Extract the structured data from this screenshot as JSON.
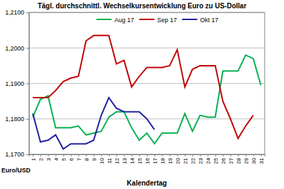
{
  "chart_data": {
    "type": "line",
    "title": "Tägl. durchschnittl. Wechselkursentwicklung Euro zu US-Dollar",
    "x_label": "Kalendertag",
    "y_label": "Euro/USD",
    "categories": [
      "1",
      "2",
      "3",
      "4",
      "5",
      "6",
      "7",
      "8",
      "9",
      "10",
      "11",
      "12",
      "13",
      "14",
      "15",
      "16",
      "17",
      "18",
      "19",
      "20",
      "21",
      "22",
      "23",
      "24",
      "25",
      "26",
      "27",
      "28",
      "29",
      "30",
      "31"
    ],
    "series": [
      {
        "name": "Aug 17",
        "color": "#00b050",
        "values": [
          1.1805,
          1.1855,
          1.1865,
          1.1775,
          1.1775,
          1.1775,
          1.178,
          1.1755,
          1.176,
          1.1765,
          1.1805,
          1.182,
          1.182,
          1.1775,
          1.174,
          1.176,
          1.173,
          1.176,
          1.176,
          1.176,
          1.1815,
          1.1765,
          1.181,
          1.1805,
          1.1805,
          1.1935,
          1.1935,
          1.1935,
          1.198,
          1.197,
          1.1895
        ]
      },
      {
        "name": "Sep 17",
        "color": "#c00000",
        "values": [
          1.186,
          1.186,
          1.186,
          1.188,
          1.1905,
          1.1915,
          1.192,
          1.202,
          1.2035,
          1.2035,
          1.2035,
          1.1955,
          1.1965,
          1.189,
          1.192,
          1.1945,
          1.1945,
          1.1945,
          1.195,
          1.1995,
          1.189,
          1.194,
          1.195,
          1.195,
          1.195,
          1.185,
          1.18,
          1.1745,
          1.178,
          1.181,
          null
        ]
      },
      {
        "name": "Okt 17",
        "color": "#1f1fa0",
        "values": [
          1.1815,
          1.1735,
          1.174,
          1.1755,
          1.1715,
          1.173,
          1.173,
          1.173,
          1.174,
          1.181,
          1.186,
          1.183,
          1.182,
          1.182,
          1.182,
          1.18,
          1.177,
          null,
          null,
          null,
          null,
          null,
          null,
          null,
          null,
          null,
          null,
          null,
          null,
          null,
          null
        ]
      }
    ],
    "ylim": [
      1.17,
      1.21
    ],
    "yticks": [
      {
        "value": 1.17,
        "label": "1,1700"
      },
      {
        "value": 1.18,
        "label": "1,1800"
      },
      {
        "value": 1.19,
        "label": "1,1900"
      },
      {
        "value": 1.2,
        "label": "1,2000"
      },
      {
        "value": 1.21,
        "label": "1,2100"
      }
    ],
    "grid": true,
    "legend": "top"
  }
}
